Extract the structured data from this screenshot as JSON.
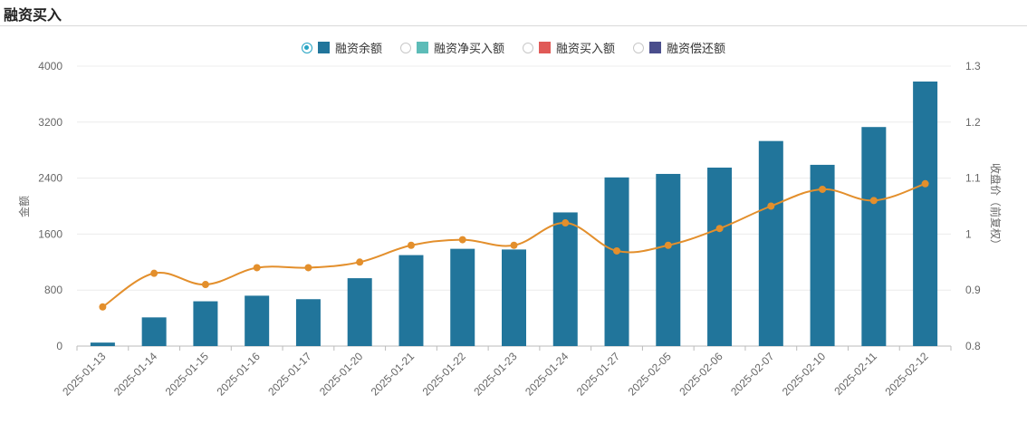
{
  "header": {
    "title": "融资买入"
  },
  "legend": {
    "items": [
      {
        "label": "融资余额",
        "color": "#21759b",
        "selected": true
      },
      {
        "label": "融资净买入额",
        "color": "#5dbcb8",
        "selected": false
      },
      {
        "label": "融资买入额",
        "color": "#e05a57",
        "selected": false
      },
      {
        "label": "融资偿还额",
        "color": "#4a4e8c",
        "selected": false
      }
    ]
  },
  "chart_data": {
    "type": "bar",
    "categories": [
      "2025-01-13",
      "2025-01-14",
      "2025-01-15",
      "2025-01-16",
      "2025-01-17",
      "2025-01-20",
      "2025-01-21",
      "2025-01-22",
      "2025-01-23",
      "2025-01-24",
      "2025-01-27",
      "2025-02-05",
      "2025-02-06",
      "2025-02-07",
      "2025-02-10",
      "2025-02-11",
      "2025-02-12"
    ],
    "series": [
      {
        "name": "融资余额",
        "type": "bar",
        "axis": "left",
        "color": "#21759b",
        "values": [
          50,
          410,
          640,
          720,
          670,
          970,
          1300,
          1390,
          1380,
          1910,
          2410,
          2460,
          2550,
          2930,
          2590,
          3130,
          3780
        ]
      },
      {
        "type": "line",
        "axis": "right",
        "color": "#e38f2c",
        "values": [
          0.87,
          0.93,
          0.91,
          0.94,
          0.94,
          0.95,
          0.98,
          0.99,
          0.98,
          1.02,
          0.97,
          0.98,
          1.01,
          1.05,
          1.08,
          1.06,
          1.09
        ]
      }
    ],
    "ylabel": "金额",
    "ylabel_right": "收盘价（前复权）",
    "ylim": [
      0,
      4000
    ],
    "yticks": [
      "0",
      "800",
      "1600",
      "2400",
      "3200",
      "4000"
    ],
    "ylim_right": [
      0.8,
      1.3
    ],
    "yticks_right": [
      "0.8",
      "0.9",
      "1",
      "1.1",
      "1.2",
      "1.3"
    ],
    "grid": true,
    "legend_position": "top-center"
  }
}
